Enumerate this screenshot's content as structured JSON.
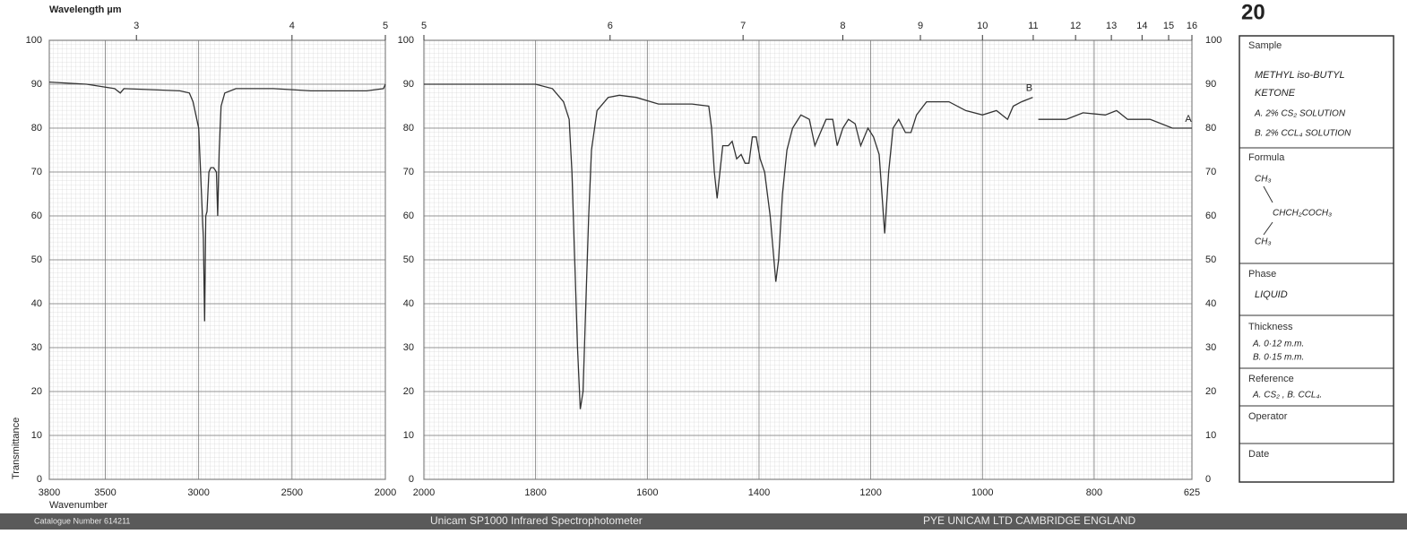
{
  "chart_data": [
    {
      "type": "line",
      "x2label": "Wavelength µm",
      "xlabel": "Wavenumber",
      "ylabel": "Transmittance",
      "xlim": [
        3800,
        2000
      ],
      "ylim": [
        0,
        100
      ],
      "xticks": [
        3800,
        3500,
        3000,
        2500,
        2000
      ],
      "x2ticks": [
        3,
        4,
        5
      ],
      "yticks": [
        0,
        10,
        20,
        30,
        40,
        50,
        60,
        70,
        80,
        90,
        100
      ],
      "grid": true,
      "series": [
        {
          "color": "#333333",
          "x": [
            3800,
            3600,
            3450,
            3420,
            3400,
            3100,
            3050,
            3030,
            3000,
            2990,
            2975,
            2968,
            2962,
            2955,
            2945,
            2935,
            2920,
            2905,
            2898,
            2890,
            2880,
            2860,
            2800,
            2600,
            2400,
            2100,
            2010,
            2000
          ],
          "values": [
            90.5,
            90,
            89,
            88,
            89,
            88.5,
            88,
            86,
            80,
            70,
            55,
            36,
            60,
            61,
            70,
            71,
            71,
            70,
            60,
            75,
            85,
            88,
            89,
            89,
            88.5,
            88.5,
            89,
            90
          ]
        }
      ]
    },
    {
      "type": "line",
      "xlim": [
        2000,
        625
      ],
      "ylim": [
        0,
        100
      ],
      "xticks": [
        2000,
        1800,
        1600,
        1400,
        1200,
        1000,
        800,
        625
      ],
      "x2ticks": [
        5,
        6,
        7,
        8,
        9,
        10,
        11,
        12,
        13,
        14,
        15,
        16
      ],
      "yticks": [
        0,
        10,
        20,
        30,
        40,
        50,
        60,
        70,
        80,
        90,
        100
      ],
      "grid": true,
      "series": [
        {
          "name": "B",
          "color": "#333333",
          "x": [
            2000,
            1800,
            1770,
            1750,
            1740,
            1735,
            1730,
            1725,
            1720,
            1715,
            1710,
            1705,
            1700,
            1690,
            1670,
            1650,
            1620,
            1580,
            1520,
            1490,
            1485,
            1480,
            1475,
            1470,
            1465,
            1455,
            1448,
            1440,
            1432,
            1425,
            1418,
            1412,
            1405,
            1398,
            1390,
            1380,
            1370,
            1365,
            1358,
            1350,
            1340,
            1325,
            1310,
            1300,
            1290,
            1280,
            1268,
            1260,
            1250,
            1240,
            1228,
            1218,
            1205,
            1195,
            1185,
            1175,
            1168,
            1160,
            1150,
            1138,
            1128,
            1118,
            1100,
            1060,
            1030,
            1000,
            975,
            955,
            945,
            930,
            910
          ],
          "values": [
            90,
            90,
            89,
            86,
            82,
            70,
            50,
            30,
            16,
            20,
            40,
            60,
            75,
            84,
            87,
            87.5,
            87,
            85.5,
            85.5,
            85,
            80,
            70,
            64,
            70,
            76,
            76,
            77,
            73,
            74,
            72,
            72,
            78,
            78,
            73,
            70,
            60,
            45,
            50,
            65,
            75,
            80,
            83,
            82,
            76,
            79,
            82,
            82,
            76,
            80,
            82,
            81,
            76,
            80,
            78,
            74,
            56,
            70,
            80,
            82,
            79,
            79,
            83,
            86,
            86,
            84,
            83,
            84,
            82,
            85,
            86,
            87
          ]
        },
        {
          "name": "A",
          "color": "#333333",
          "x": [
            900,
            850,
            820,
            780,
            760,
            740,
            700,
            660,
            625
          ],
          "values": [
            82,
            82,
            83.5,
            83,
            84,
            82,
            82,
            80,
            80
          ]
        }
      ]
    }
  ],
  "page_number": "20",
  "card": {
    "sample": {
      "heading": "Sample",
      "lines": [
        "METHYL iso-BUTYL",
        "KETONE",
        "A. 2% CS₂ SOLUTION",
        "B. 2% CCL₄ SOLUTION"
      ]
    },
    "formula": {
      "heading": "Formula",
      "lines": [
        "CH₃",
        "CHCH₂COCH₃",
        "CH₃"
      ]
    },
    "phase": {
      "heading": "Phase",
      "lines": [
        "LIQUID"
      ]
    },
    "thickness": {
      "heading": "Thickness",
      "lines": [
        "A. 0·12 m.m.",
        "B. 0·15 m.m."
      ]
    },
    "reference": {
      "heading": "Reference",
      "lines": [
        "A. CS₂ , B. CCL₄."
      ]
    },
    "operator": {
      "heading": "Operator"
    },
    "date": {
      "heading": "Date"
    }
  },
  "footer": {
    "catalogue": "Catalogue Number 614211",
    "instrument": "Unicam SP1000 Infrared Spectrophotometer",
    "maker": "PYE UNICAM LTD CAMBRIDGE ENGLAND"
  }
}
